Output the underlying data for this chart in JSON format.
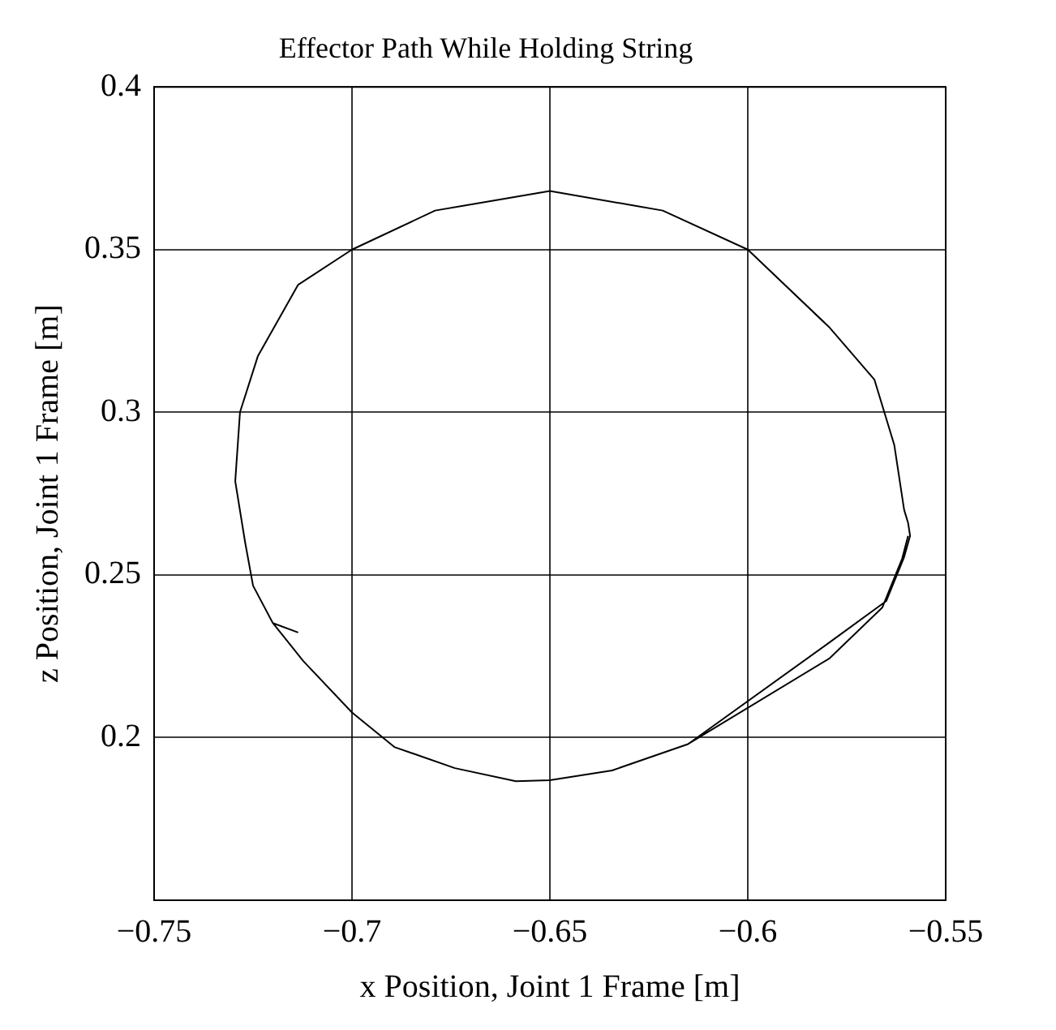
{
  "chart_data": {
    "type": "line",
    "title": "Effector Path While Holding String",
    "xlabel": "x Position, Joint 1 Frame [m]",
    "ylabel": "z Position, Joint 1 Frame [m]",
    "xlim": [
      -0.75,
      -0.55
    ],
    "xticks": [
      {
        "value": -0.75,
        "label": "−0.75"
      },
      {
        "value": -0.7,
        "label": "−0.7"
      },
      {
        "value": -0.65,
        "label": "−0.65"
      },
      {
        "value": -0.6,
        "label": "−0.6"
      },
      {
        "value": -0.55,
        "label": "−0.55"
      }
    ],
    "ylim": [
      0.15,
      0.4
    ],
    "yticks": [
      0.2,
      0.25,
      0.3,
      0.35,
      0.4
    ],
    "grid": true,
    "line_style": "solid",
    "marker": "none",
    "series": [
      {
        "color": "#000000",
        "x": [
          -0.7136,
          -0.72,
          -0.7123,
          -0.7,
          -0.6893,
          -0.674,
          -0.6586,
          -0.65,
          -0.6343,
          -0.6151,
          -0.5793,
          -0.565,
          -0.5605,
          -0.559,
          -0.5595,
          -0.5605,
          -0.563,
          -0.568,
          -0.5793,
          -0.6,
          -0.6215,
          -0.65,
          -0.679,
          -0.7,
          -0.7136,
          -0.7238,
          -0.7283,
          -0.7295,
          -0.727,
          -0.725,
          -0.72,
          -0.7123,
          -0.7,
          -0.6893,
          -0.674,
          -0.6586,
          -0.65,
          -0.6343,
          -0.6151,
          -0.5793,
          -0.566,
          -0.561,
          -0.5595
        ],
        "values": [
          0.2323,
          0.2352,
          0.2235,
          0.2077,
          0.1971,
          0.1906,
          0.1866,
          0.1869,
          0.1899,
          0.198,
          0.2293,
          0.242,
          0.2555,
          0.262,
          0.266,
          0.27,
          0.29,
          0.31,
          0.326,
          0.35,
          0.362,
          0.368,
          0.362,
          0.35,
          0.3392,
          0.3172,
          0.3,
          0.2788,
          0.26,
          0.2467,
          0.2352,
          0.2235,
          0.2077,
          0.1971,
          0.1906,
          0.1866,
          0.1869,
          0.1899,
          0.198,
          0.2244,
          0.24,
          0.255,
          0.262
        ]
      }
    ]
  }
}
